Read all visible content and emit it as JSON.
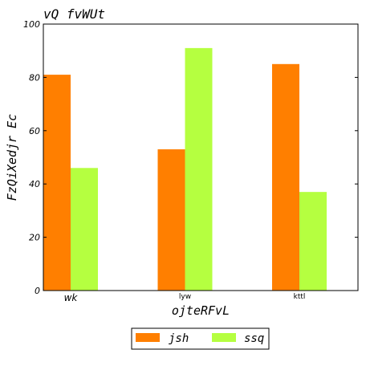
{
  "chart_data": {
    "type": "bar",
    "title": "vQ fvWUt",
    "xlabel": "ojteRFvL",
    "ylabel": "FzQiXedjr Ec",
    "categories": [
      "wk",
      "lyw",
      "kttl"
    ],
    "series": [
      {
        "name": "jsh",
        "color": "#ff7f00",
        "values": [
          81,
          53,
          85
        ]
      },
      {
        "name": "ssq",
        "color": "#b5ff40",
        "values": [
          46,
          91,
          37
        ]
      }
    ],
    "ylim": [
      0,
      100
    ],
    "yticks": [
      "0",
      "20",
      "40",
      "60",
      "80",
      "100"
    ],
    "grid": false,
    "legend": "bottom-center"
  }
}
